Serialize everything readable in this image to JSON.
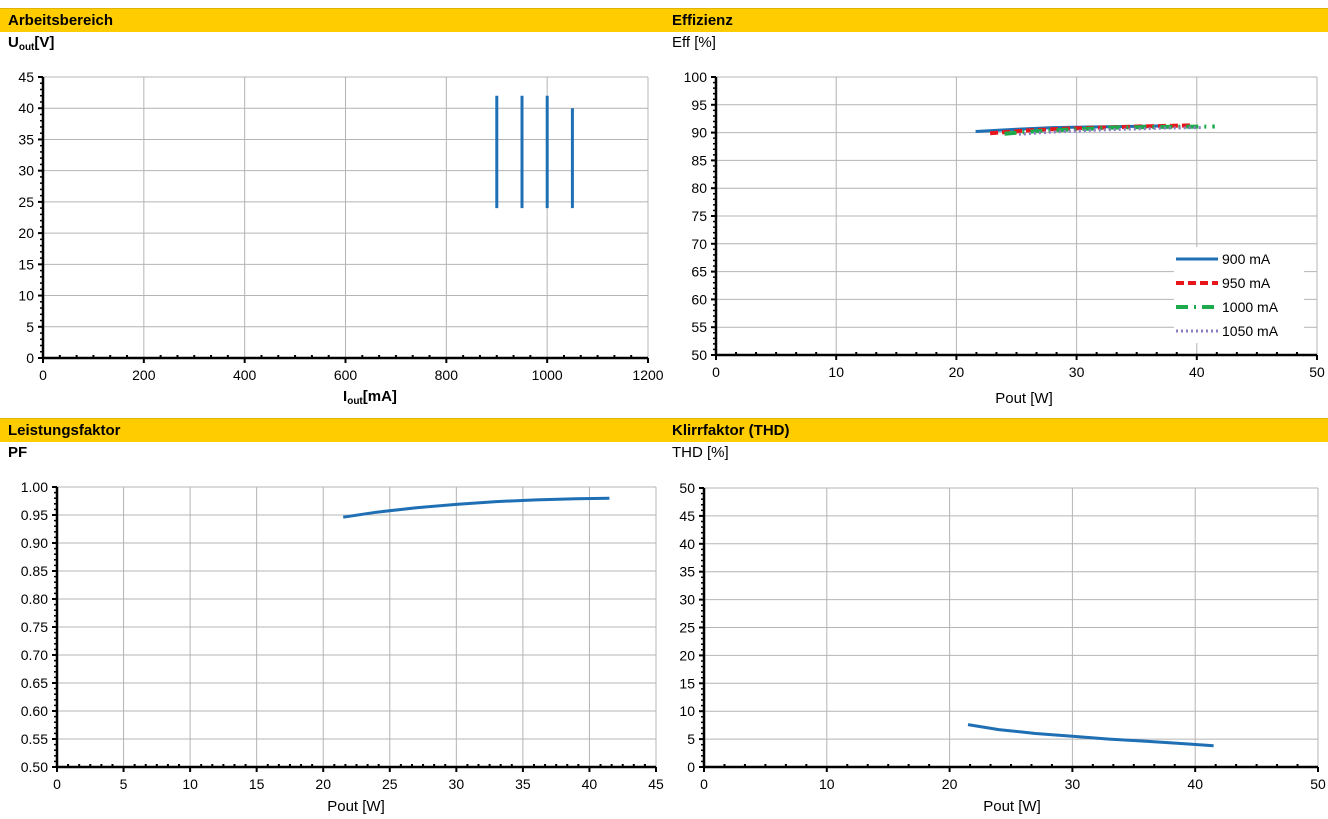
{
  "panels": {
    "arbeitsbereich": {
      "title": "Arbeitsbereich",
      "ylabel_main": "U",
      "ylabel_sub": "out",
      "ylabel_unit": "[V]",
      "xlabel_main": "I",
      "xlabel_sub": "out",
      "xlabel_unit": "[mA]"
    },
    "effizienz": {
      "title": "Effizienz",
      "ylabel": "Eff [%]",
      "xlabel": "Pout [W]"
    },
    "leistungsfaktor": {
      "title": "Leistungsfaktor",
      "ylabel": "PF",
      "xlabel": "Pout [W]"
    },
    "klirrfaktor": {
      "title": "Klirrfaktor (THD)",
      "ylabel": "THD [%]",
      "xlabel": "Pout [W]"
    }
  },
  "colors": {
    "header": "#FFCC00",
    "blue": "#1F6FB4",
    "red": "#E8161B",
    "green": "#1DAA4C",
    "purple": "#8E7CC3",
    "grid": "#B4B4B4"
  },
  "chart_data": [
    {
      "id": "arbeitsbereich",
      "type": "line",
      "title": "Arbeitsbereich",
      "xlabel": "Iout[mA]",
      "ylabel": "Uout[V]",
      "xlim": [
        0,
        1200
      ],
      "ylim": [
        0,
        45
      ],
      "xticks": [
        0,
        200,
        400,
        600,
        800,
        1000,
        1200
      ],
      "yticks": [
        0,
        5,
        10,
        15,
        20,
        25,
        30,
        35,
        40,
        45
      ],
      "grid": true,
      "series": [
        {
          "x": [
            900,
            900
          ],
          "y": [
            24,
            42
          ]
        },
        {
          "x": [
            950,
            950
          ],
          "y": [
            24,
            42
          ]
        },
        {
          "x": [
            1000,
            1000
          ],
          "y": [
            24,
            42
          ]
        },
        {
          "x": [
            1050,
            1050
          ],
          "y": [
            24,
            40
          ]
        }
      ]
    },
    {
      "id": "effizienz",
      "type": "line",
      "title": "Effizienz",
      "xlabel": "Pout [W]",
      "ylabel": "Eff [%]",
      "xlim": [
        0,
        50
      ],
      "ylim": [
        50,
        100
      ],
      "xticks": [
        0,
        10,
        20,
        30,
        40,
        50
      ],
      "yticks": [
        50,
        55,
        60,
        65,
        70,
        75,
        80,
        85,
        90,
        95,
        100
      ],
      "grid": true,
      "legend": "bottom-right",
      "series": [
        {
          "name": "900 mA",
          "x": [
            21.6,
            25,
            28,
            31,
            34,
            37.4
          ],
          "y": [
            90.2,
            90.6,
            90.9,
            91.0,
            91.1,
            91.2
          ]
        },
        {
          "name": "950 mA",
          "x": [
            22.8,
            26,
            29,
            32,
            35,
            39.5
          ],
          "y": [
            89.9,
            90.4,
            90.7,
            90.9,
            91.1,
            91.3
          ]
        },
        {
          "name": "1000 mA",
          "x": [
            24,
            27,
            30,
            33,
            36,
            41.5
          ],
          "y": [
            89.8,
            90.3,
            90.6,
            90.9,
            91.0,
            91.1
          ]
        },
        {
          "name": "1050 mA",
          "x": [
            25.2,
            28,
            31,
            34,
            37,
            40.5
          ],
          "y": [
            89.7,
            90.1,
            90.4,
            90.6,
            90.8,
            90.9
          ]
        }
      ]
    },
    {
      "id": "leistungsfaktor",
      "type": "line",
      "title": "Leistungsfaktor",
      "xlabel": "Pout [W]",
      "ylabel": "PF",
      "xlim": [
        0,
        45
      ],
      "ylim": [
        0.5,
        1.0
      ],
      "xticks": [
        0,
        5,
        10,
        15,
        20,
        25,
        30,
        35,
        40,
        45
      ],
      "yticks": [
        "0.50",
        "0.55",
        "0.60",
        "0.65",
        "0.70",
        "0.75",
        "0.80",
        "0.85",
        "0.90",
        "0.95",
        "1.00"
      ],
      "grid": true,
      "series": [
        {
          "x": [
            21.5,
            24,
            27,
            30,
            33,
            36,
            39,
            41.5
          ],
          "y": [
            0.946,
            0.955,
            0.963,
            0.969,
            0.974,
            0.977,
            0.979,
            0.98
          ]
        }
      ]
    },
    {
      "id": "klirrfaktor",
      "type": "line",
      "title": "Klirrfaktor (THD)",
      "xlabel": "Pout [W]",
      "ylabel": "THD [%]",
      "xlim": [
        0,
        50
      ],
      "ylim": [
        0,
        50
      ],
      "xticks": [
        0,
        10,
        20,
        30,
        40,
        50
      ],
      "yticks": [
        0,
        5,
        10,
        15,
        20,
        25,
        30,
        35,
        40,
        45,
        50
      ],
      "grid": true,
      "series": [
        {
          "x": [
            21.5,
            24,
            27,
            30,
            33,
            36,
            39,
            41.5
          ],
          "y": [
            7.6,
            6.7,
            6.0,
            5.5,
            5.0,
            4.6,
            4.2,
            3.8
          ]
        }
      ]
    }
  ]
}
